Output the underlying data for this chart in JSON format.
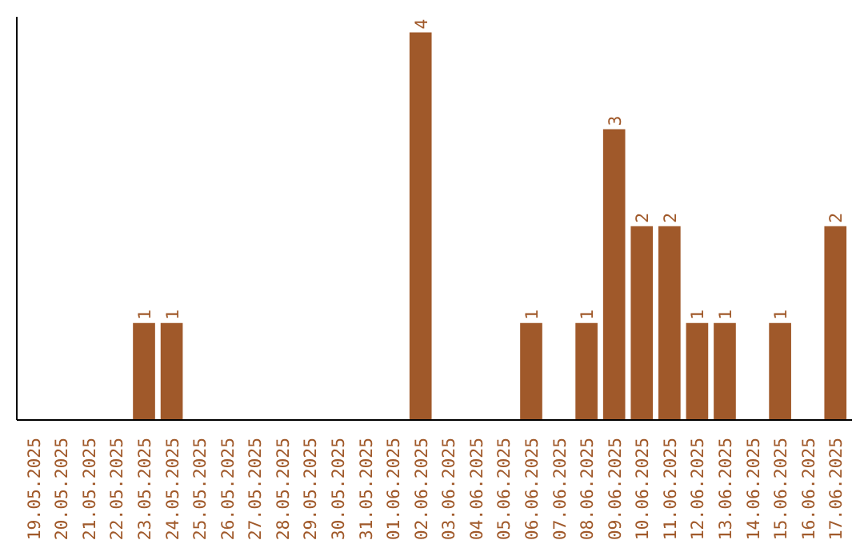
{
  "chart_data": {
    "type": "bar",
    "categories": [
      "19.05.2025",
      "20.05.2025",
      "21.05.2025",
      "22.05.2025",
      "23.05.2025",
      "24.05.2025",
      "25.05.2025",
      "26.05.2025",
      "27.05.2025",
      "28.05.2025",
      "29.05.2025",
      "30.05.2025",
      "31.05.2025",
      "01.06.2025",
      "02.06.2025",
      "03.06.2025",
      "04.06.2025",
      "05.06.2025",
      "06.06.2025",
      "07.06.2025",
      "08.06.2025",
      "09.06.2025",
      "10.06.2025",
      "11.06.2025",
      "12.06.2025",
      "13.06.2025",
      "14.06.2025",
      "15.06.2025",
      "16.06.2025",
      "17.06.2025"
    ],
    "values": [
      0,
      0,
      0,
      0,
      1,
      1,
      0,
      0,
      0,
      0,
      0,
      0,
      0,
      0,
      4,
      0,
      0,
      0,
      1,
      0,
      1,
      3,
      2,
      2,
      1,
      1,
      0,
      1,
      0,
      2
    ],
    "value_labels": [
      null,
      null,
      null,
      null,
      "1",
      "1",
      null,
      null,
      null,
      null,
      null,
      null,
      null,
      null,
      "4",
      null,
      null,
      null,
      "1",
      null,
      "1",
      "3",
      "2",
      "2",
      "1",
      "1",
      null,
      "1",
      null,
      "2"
    ],
    "color": "#a0592a",
    "grid": false,
    "tick_labels": "x"
  }
}
